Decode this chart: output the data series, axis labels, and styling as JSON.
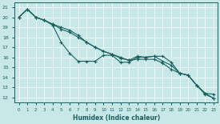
{
  "xlabel": "Humidex (Indice chaleur)",
  "bg_color": "#c8e8e8",
  "line_color": "#1a6060",
  "grid_color": "#ffffff",
  "xlim": [
    -0.5,
    23.5
  ],
  "ylim": [
    11.5,
    21.5
  ],
  "yticks": [
    12,
    13,
    14,
    15,
    16,
    17,
    18,
    19,
    20,
    21
  ],
  "xticks": [
    0,
    1,
    2,
    3,
    4,
    5,
    6,
    7,
    8,
    9,
    10,
    11,
    12,
    13,
    14,
    15,
    16,
    17,
    18,
    19,
    20,
    21,
    22,
    23
  ],
  "series1_x": [
    0,
    1,
    2,
    3,
    4,
    5,
    6,
    7,
    8,
    9,
    10,
    11,
    12,
    13,
    14,
    15,
    16,
    17,
    18,
    19,
    20,
    21,
    22,
    23
  ],
  "series1_y": [
    20.0,
    20.8,
    20.0,
    19.7,
    19.2,
    17.5,
    16.4,
    15.6,
    15.6,
    15.6,
    16.2,
    16.2,
    15.5,
    15.5,
    16.0,
    16.0,
    16.1,
    16.1,
    15.5,
    14.4,
    14.2,
    13.2,
    12.4,
    12.3
  ],
  "series2_x": [
    0,
    1,
    2,
    3,
    4,
    5,
    6,
    7,
    8,
    9,
    10,
    11,
    12,
    13,
    14,
    15,
    16,
    17,
    18,
    19,
    20,
    21,
    22,
    23
  ],
  "series2_y": [
    20.0,
    20.8,
    20.0,
    19.7,
    19.3,
    19.0,
    18.7,
    18.2,
    17.5,
    17.0,
    16.6,
    16.3,
    15.9,
    15.7,
    15.8,
    15.8,
    15.8,
    15.4,
    14.8,
    14.4,
    14.2,
    13.2,
    12.4,
    11.9
  ],
  "series3_x": [
    0,
    1,
    2,
    3,
    4,
    5,
    6,
    7,
    8,
    9,
    10,
    11,
    12,
    13,
    14,
    15,
    16,
    17,
    18,
    19,
    20,
    21,
    22,
    23
  ],
  "series3_y": [
    20.0,
    20.8,
    20.0,
    19.7,
    19.3,
    18.8,
    18.5,
    18.0,
    17.5,
    17.0,
    16.6,
    16.3,
    16.0,
    15.7,
    16.1,
    16.0,
    16.1,
    15.6,
    15.2,
    14.4,
    14.2,
    13.2,
    12.3,
    11.9
  ]
}
